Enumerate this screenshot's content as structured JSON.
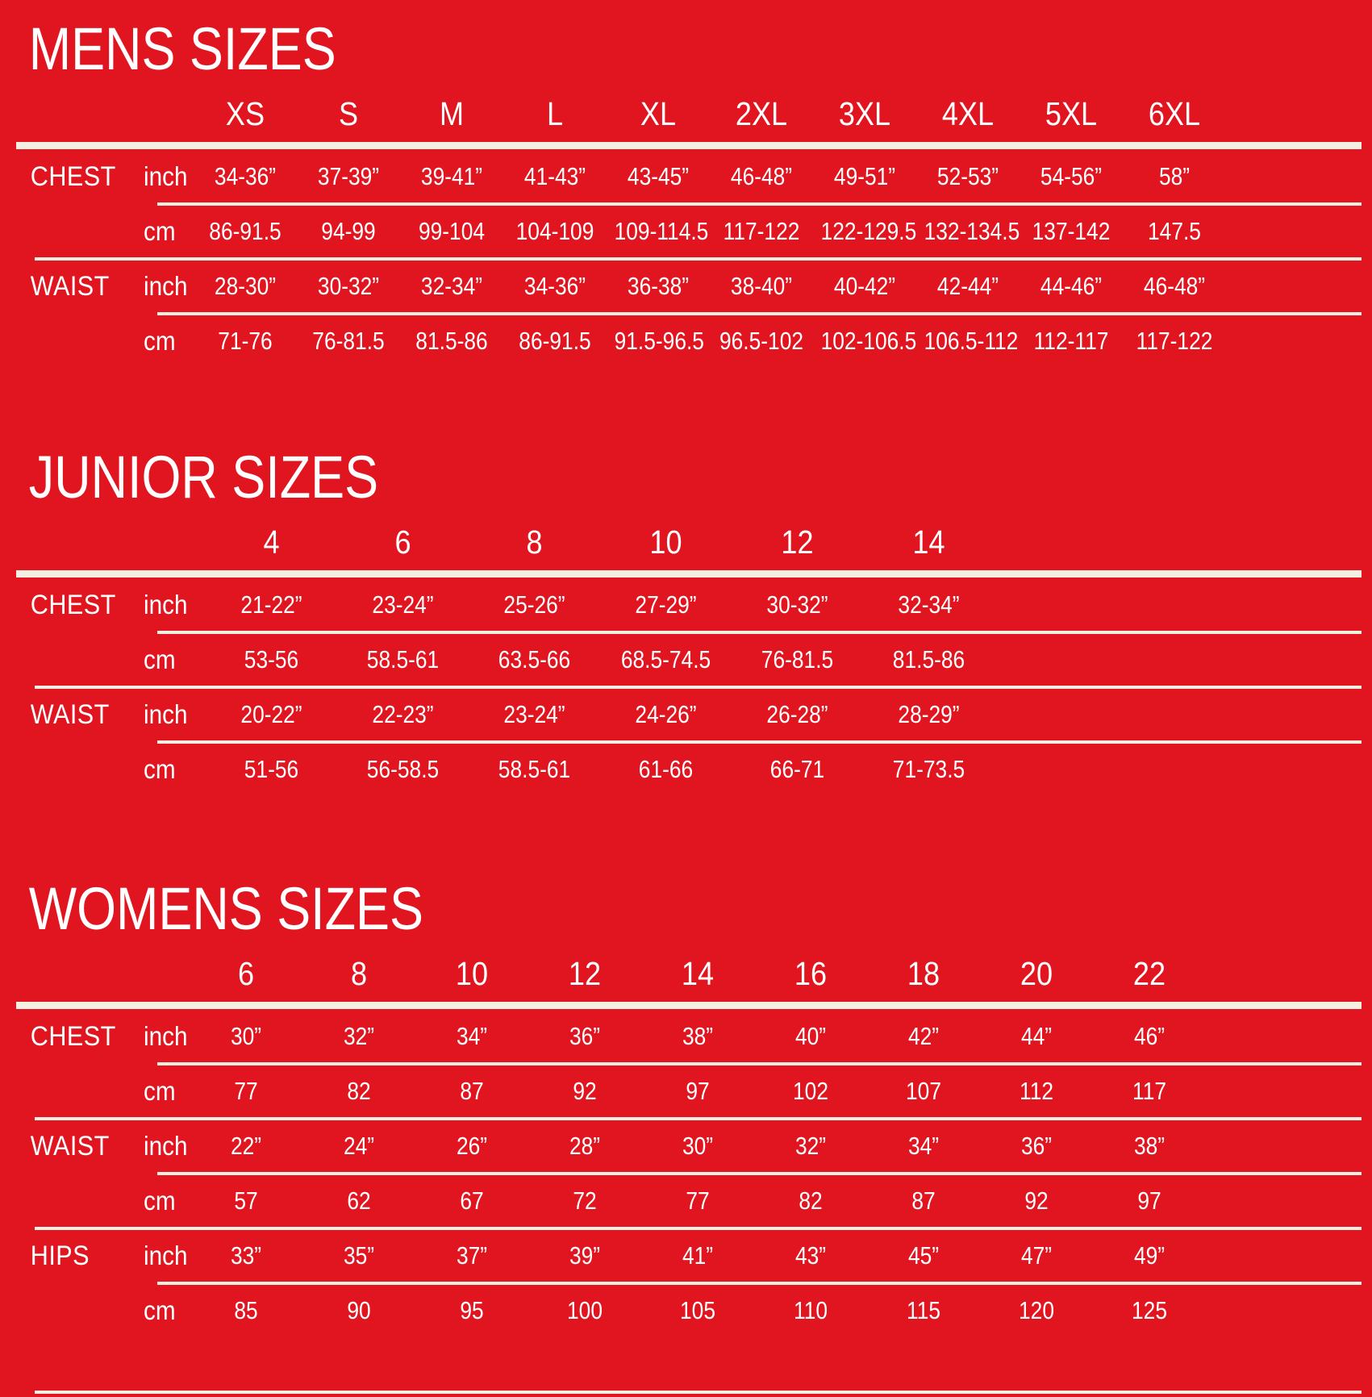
{
  "page": {
    "background_color": "#E1151F",
    "text_color": "#FFFFFF",
    "line_color": "#F3EFE3"
  },
  "chart_data": [
    {
      "type": "table",
      "id": "mens",
      "title": "MENS SIZES",
      "columns": [
        "XS",
        "S",
        "M",
        "L",
        "XL",
        "2XL",
        "3XL",
        "4XL",
        "5XL",
        "6XL"
      ],
      "rows": [
        {
          "label": "CHEST",
          "unit": "inch",
          "values": [
            "34-36”",
            "37-39”",
            "39-41”",
            "41-43”",
            "43-45”",
            "46-48”",
            "49-51”",
            "52-53”",
            "54-56”",
            "58”"
          ],
          "divider_after": "indent"
        },
        {
          "label": "",
          "unit": "cm",
          "values": [
            "86-91.5",
            "94-99",
            "99-104",
            "104-109",
            "109-114.5",
            "117-122",
            "122-129.5",
            "132-134.5",
            "137-142",
            "147.5"
          ],
          "divider_after": "full"
        },
        {
          "label": "WAIST",
          "unit": "inch",
          "values": [
            "28-30”",
            "30-32”",
            "32-34”",
            "34-36”",
            "36-38”",
            "38-40”",
            "40-42”",
            "42-44”",
            "44-46”",
            "46-48”"
          ],
          "divider_after": "indent"
        },
        {
          "label": "",
          "unit": "cm",
          "values": [
            "71-76",
            "76-81.5",
            "81.5-86",
            "86-91.5",
            "91.5-96.5",
            "96.5-102",
            "102-106.5",
            "106.5-112",
            "112-117",
            "117-122"
          ],
          "divider_after": "none"
        }
      ]
    },
    {
      "type": "table",
      "id": "junior",
      "title": "JUNIOR SIZES",
      "columns": [
        "4",
        "6",
        "8",
        "10",
        "12",
        "14"
      ],
      "rows": [
        {
          "label": "CHEST",
          "unit": "inch",
          "values": [
            "21-22”",
            "23-24”",
            "25-26”",
            "27-29”",
            "30-32”",
            "32-34”"
          ],
          "divider_after": "indent"
        },
        {
          "label": "",
          "unit": "cm",
          "values": [
            "53-56",
            "58.5-61",
            "63.5-66",
            "68.5-74.5",
            "76-81.5",
            "81.5-86"
          ],
          "divider_after": "full"
        },
        {
          "label": "WAIST",
          "unit": "inch",
          "values": [
            "20-22”",
            "22-23”",
            "23-24”",
            "24-26”",
            "26-28”",
            "28-29”"
          ],
          "divider_after": "indent"
        },
        {
          "label": "",
          "unit": "cm",
          "values": [
            "51-56",
            "56-58.5",
            "58.5-61",
            "61-66",
            "66-71",
            "71-73.5"
          ],
          "divider_after": "none"
        }
      ]
    },
    {
      "type": "table",
      "id": "womens",
      "title": "WOMENS SIZES",
      "columns": [
        "6",
        "8",
        "10",
        "12",
        "14",
        "16",
        "18",
        "20",
        "22"
      ],
      "rows": [
        {
          "label": "CHEST",
          "unit": "inch",
          "values": [
            "30”",
            "32”",
            "34”",
            "36”",
            "38”",
            "40”",
            "42”",
            "44”",
            "46”"
          ],
          "divider_after": "indent"
        },
        {
          "label": "",
          "unit": "cm",
          "values": [
            "77",
            "82",
            "87",
            "92",
            "97",
            "102",
            "107",
            "112",
            "117"
          ],
          "divider_after": "full"
        },
        {
          "label": "WAIST",
          "unit": "inch",
          "values": [
            "22”",
            "24”",
            "26”",
            "28”",
            "30”",
            "32”",
            "34”",
            "36”",
            "38”"
          ],
          "divider_after": "indent"
        },
        {
          "label": "",
          "unit": "cm",
          "values": [
            "57",
            "62",
            "67",
            "72",
            "77",
            "82",
            "87",
            "92",
            "97"
          ],
          "divider_after": "full"
        },
        {
          "label": "HIPS",
          "unit": "inch",
          "values": [
            "33”",
            "35”",
            "37”",
            "39”",
            "41”",
            "43”",
            "45”",
            "47”",
            "49”"
          ],
          "divider_after": "indent"
        },
        {
          "label": "",
          "unit": "cm",
          "values": [
            "85",
            "90",
            "95",
            "100",
            "105",
            "110",
            "115",
            "120",
            "125"
          ],
          "divider_after": "none"
        }
      ]
    }
  ]
}
